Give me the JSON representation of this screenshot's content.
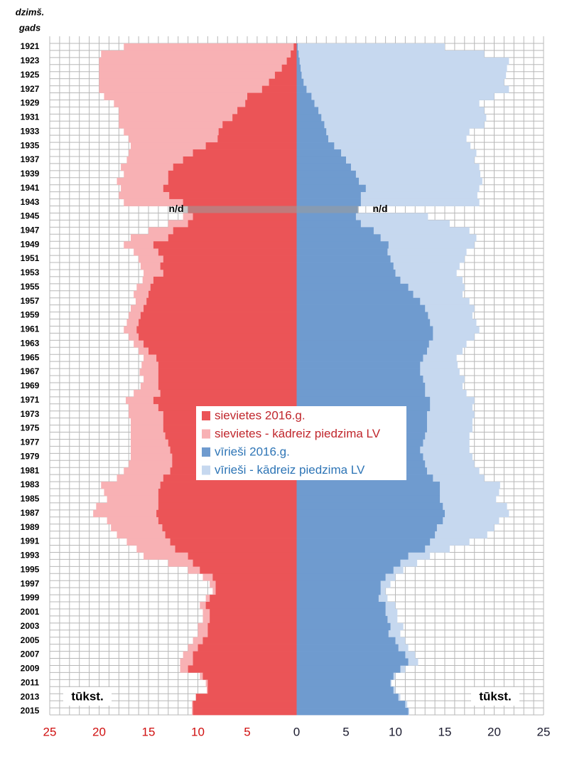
{
  "chart_data": {
    "type": "pyramid",
    "y_label_lines": [
      "dzimš.",
      "gads"
    ],
    "categories": [
      "1921",
      null,
      "1923",
      null,
      "1925",
      null,
      "1927",
      null,
      "1929",
      null,
      "1931",
      null,
      "1933",
      null,
      "1935",
      null,
      "1937",
      null,
      "1939",
      null,
      "1941",
      null,
      "1943",
      null,
      "1945",
      null,
      "1947",
      null,
      "1949",
      null,
      "1951",
      null,
      "1953",
      null,
      "1955",
      null,
      "1957",
      null,
      "1959",
      null,
      "1961",
      null,
      "1963",
      null,
      "1965",
      null,
      "1967",
      null,
      "1969",
      null,
      "1971",
      null,
      "1973",
      null,
      "1975",
      null,
      "1977",
      null,
      "1979",
      null,
      "1981",
      null,
      "1983",
      null,
      "1985",
      null,
      "1987",
      null,
      "1989",
      null,
      "1991",
      null,
      "1993",
      null,
      "1995",
      null,
      "1997",
      null,
      "1999",
      null,
      "2001",
      null,
      "2003",
      null,
      "2005",
      null,
      "2007",
      null,
      "2009",
      null,
      "2011",
      null,
      "2013",
      null,
      "2015"
    ],
    "series": [
      {
        "name": "sievietes 2016.g.",
        "color": "#eb5457",
        "side": "left",
        "values": [
          0.3,
          0.6,
          1.0,
          1.5,
          2.2,
          2.8,
          3.5,
          5.0,
          5.2,
          6,
          6.5,
          7.5,
          7.9,
          8,
          9.2,
          10.5,
          11.5,
          12.5,
          13,
          13,
          13.5,
          12.9,
          11.5,
          11,
          10.5,
          11,
          12.5,
          13,
          14.5,
          14,
          13.5,
          13.8,
          13.5,
          14.5,
          14.8,
          15,
          15.2,
          15.5,
          15.8,
          16,
          16.2,
          16,
          15.5,
          15,
          14.2,
          14,
          14,
          14,
          14,
          13.8,
          14.5,
          14,
          13.5,
          13.5,
          13.5,
          13.3,
          13,
          12.8,
          12.6,
          12.6,
          12.8,
          13.5,
          13.8,
          14,
          14,
          14,
          14.2,
          14,
          13.6,
          13.3,
          12.8,
          12.3,
          11,
          10.5,
          9.8,
          8.5,
          8.2,
          8.2,
          8.8,
          9.2,
          8.8,
          8.8,
          9,
          9,
          9.5,
          10,
          10.5,
          10.5,
          11,
          9.5,
          9,
          9,
          10.2,
          10.5,
          10.5
        ]
      },
      {
        "name": "sievietes - kādreiz piedzima LV",
        "color": "#f8b1b4",
        "side": "left",
        "values": [
          17.5,
          19.8,
          20,
          20,
          20,
          20,
          20,
          19.5,
          18.5,
          18,
          18,
          18,
          17.5,
          17,
          16.8,
          17,
          17.2,
          17.8,
          17.5,
          18.2,
          17.8,
          18,
          17.5,
          null,
          11.5,
          13,
          15,
          16.8,
          17.5,
          16.5,
          16,
          15.8,
          15.5,
          15.6,
          16.2,
          16.5,
          16.3,
          16.8,
          17,
          17.2,
          17.5,
          17,
          16.5,
          16,
          15.5,
          15.7,
          15.9,
          15.5,
          15.8,
          16.5,
          17.3,
          17,
          17,
          16.8,
          16.8,
          16.8,
          16.8,
          16.8,
          16.8,
          17,
          17.5,
          18.2,
          19.8,
          19.5,
          19.2,
          20.3,
          20.6,
          19.2,
          18.8,
          18.2,
          17.2,
          16.2,
          15.5,
          13,
          11,
          9.5,
          8.8,
          8.5,
          9.2,
          9.8,
          9.5,
          9.5,
          10,
          10,
          10.5,
          11,
          11.5,
          11.8,
          11.8,
          9.8,
          9.2,
          9.1,
          10.2,
          10.6,
          10.6
        ]
      },
      {
        "name": "vīrieši 2016.g.",
        "color": "#6f9bcf",
        "side": "right",
        "values": [
          0.1,
          0.2,
          0.3,
          0.4,
          0.5,
          0.7,
          1,
          1.5,
          1.8,
          2.2,
          2.5,
          2.8,
          3,
          3.2,
          3.8,
          4.5,
          5,
          5.5,
          6,
          6.3,
          7,
          6.5,
          6.5,
          6.2,
          6,
          6.5,
          7.8,
          8.5,
          9.3,
          9.2,
          9.5,
          9.8,
          10,
          10.5,
          11.3,
          11.8,
          12.5,
          13,
          13.3,
          13.5,
          13.8,
          13.8,
          13.4,
          13.2,
          12.8,
          12.5,
          12.5,
          12.8,
          13,
          13,
          13.5,
          13.5,
          13.2,
          13.2,
          13.2,
          13,
          12.8,
          12.5,
          12.8,
          13,
          13.2,
          13.8,
          14.5,
          14.5,
          14.5,
          14.8,
          15,
          14.8,
          14.2,
          14,
          13.5,
          13,
          11.3,
          10.5,
          9.8,
          9,
          8.5,
          8.5,
          8.3,
          9,
          9,
          9.2,
          9.5,
          9.3,
          10,
          10.3,
          11,
          11.3,
          10.5,
          9.8,
          9.5,
          9.8,
          10.3,
          11,
          11.3
        ]
      },
      {
        "name": "vīrieši - kādreiz piedzima LV",
        "color": "#c6d8ef",
        "side": "right",
        "values": [
          15,
          19,
          21.5,
          21.3,
          21.2,
          21,
          21.5,
          20,
          18.5,
          19,
          19.2,
          19,
          17.5,
          17.2,
          17.6,
          18.2,
          18,
          18.5,
          18.6,
          18.8,
          18.5,
          18.3,
          18.5,
          null,
          13.3,
          15.5,
          17.5,
          18.2,
          18,
          17.2,
          17,
          16.5,
          16.2,
          16.8,
          17,
          16.8,
          17.5,
          18,
          17.8,
          18.2,
          18.5,
          18,
          17.2,
          16.8,
          16.2,
          16.3,
          16.5,
          17,
          16.8,
          17.2,
          18,
          17.8,
          18,
          17.8,
          17.8,
          17.5,
          17.5,
          17.5,
          17.8,
          18,
          18.5,
          19,
          20.6,
          20.5,
          20.2,
          21.3,
          21.5,
          20.5,
          20,
          19.3,
          17.5,
          15.5,
          13.5,
          12.2,
          10.8,
          10,
          9.5,
          9,
          9.2,
          10,
          10.2,
          10.2,
          10.8,
          10.5,
          11,
          11.3,
          12,
          12.3,
          11,
          10,
          9.6,
          10,
          10.5,
          11.2,
          11.4
        ]
      }
    ],
    "xlim": [
      -25,
      25
    ],
    "xticks": [
      {
        "value": -25,
        "label": "25"
      },
      {
        "value": -20,
        "label": "20"
      },
      {
        "value": -15,
        "label": "15"
      },
      {
        "value": -10,
        "label": "10"
      },
      {
        "value": -5,
        "label": "5"
      },
      0,
      5,
      10,
      15,
      20,
      25
    ],
    "unit_labels": [
      "tūkst.",
      "tūkst."
    ],
    "annotations": [
      "n/d",
      "n/d"
    ],
    "grid": true
  }
}
